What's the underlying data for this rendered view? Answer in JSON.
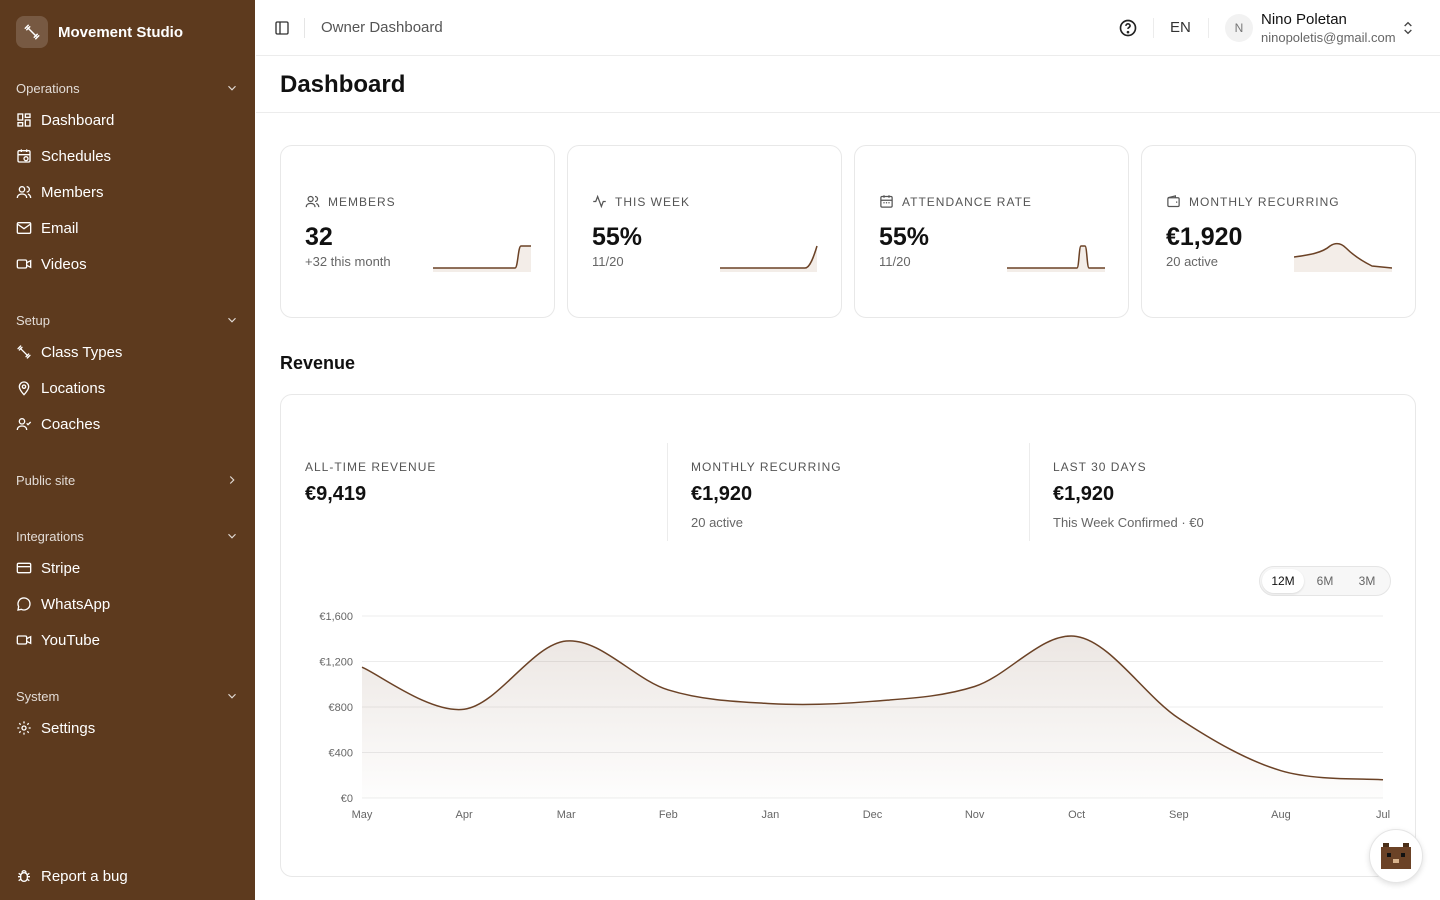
{
  "sidebar": {
    "brand": "Movement Studio",
    "groups": {
      "operations": "Operations",
      "setup": "Setup",
      "public_site": "Public site",
      "integrations": "Integrations",
      "system": "System"
    },
    "items": {
      "dashboard": "Dashboard",
      "schedules": "Schedules",
      "members": "Members",
      "email": "Email",
      "videos": "Videos",
      "class_types": "Class Types",
      "locations": "Locations",
      "coaches": "Coaches",
      "stripe": "Stripe",
      "whatsapp": "WhatsApp",
      "youtube": "YouTube",
      "settings": "Settings"
    },
    "report_bug": "Report a bug"
  },
  "topbar": {
    "breadcrumb": "Owner Dashboard",
    "language": "EN",
    "avatar_initial": "N",
    "user_name": "Nino Poletan",
    "user_email": "ninopoletis@gmail.com"
  },
  "page": {
    "title": "Dashboard"
  },
  "stats": [
    {
      "label": "MEMBERS",
      "value": "32",
      "sub": "+32 this month",
      "icon": "users-icon"
    },
    {
      "label": "THIS WEEK",
      "value": "55%",
      "sub": "11/20",
      "icon": "activity-icon"
    },
    {
      "label": "ATTENDANCE RATE",
      "value": "55%",
      "sub": "11/20",
      "icon": "calendar-icon"
    },
    {
      "label": "MONTHLY RECURRING",
      "value": "€1,920",
      "sub": "20 active",
      "icon": "wallet-icon"
    }
  ],
  "revenue": {
    "section_title": "Revenue",
    "all_time": {
      "label": "ALL-TIME REVENUE",
      "value": "€9,419"
    },
    "monthly": {
      "label": "MONTHLY RECURRING",
      "value": "€1,920",
      "sub": "20 active"
    },
    "last30": {
      "label": "LAST 30 DAYS",
      "value": "€1,920",
      "sub": "This Week Confirmed · €0"
    },
    "ranges": [
      "12M",
      "6M",
      "3M"
    ],
    "active_range": "12M"
  },
  "colors": {
    "sidebar": "#5d3a1e",
    "accent": "#6b4226"
  },
  "chart_data": {
    "type": "area",
    "categories": [
      "May",
      "Apr",
      "Mar",
      "Feb",
      "Jan",
      "Dec",
      "Nov",
      "Oct",
      "Sep",
      "Aug",
      "Jul"
    ],
    "series": [
      {
        "values": [
          1150,
          780,
          1380,
          950,
          830,
          850,
          980,
          1420,
          700,
          240,
          160
        ]
      }
    ],
    "yticks": [
      "€0",
      "€400",
      "€800",
      "€1,200",
      "€1,600"
    ],
    "ylim": [
      0,
      1600
    ],
    "grid": true
  }
}
